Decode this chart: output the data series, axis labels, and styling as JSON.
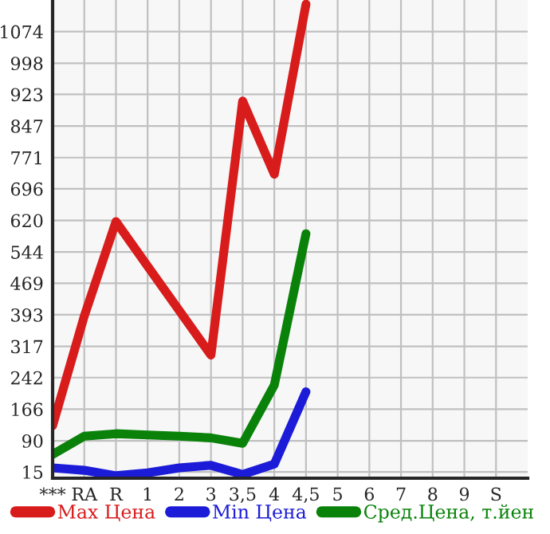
{
  "chart_data": {
    "type": "line",
    "categories": [
      "***",
      "RA",
      "R",
      "1",
      "2",
      "3",
      "3,5",
      "4",
      "4,5",
      "5",
      "6",
      "7",
      "8",
      "9",
      "S"
    ],
    "series": [
      {
        "name": "Max Цена",
        "color": "#d81c1c",
        "values": [
          126,
          390,
          617,
          510,
          403,
          296,
          907,
          731,
          1140,
          null,
          null,
          null,
          null,
          null,
          null
        ]
      },
      {
        "name": "Min Цена",
        "color": "#1c1cd8",
        "values": [
          25,
          19,
          6,
          13,
          25,
          31,
          9,
          34,
          208,
          null,
          null,
          null,
          null,
          null,
          null
        ]
      },
      {
        "name": "Сред.Цена, т.йен",
        "color": "#0a820a",
        "values": [
          57,
          101,
          107,
          104,
          101,
          97,
          84,
          224,
          588,
          null,
          null,
          null,
          null,
          null,
          null
        ]
      }
    ],
    "ylim": [
      0,
      1150
    ],
    "yticks": [
      15,
      90,
      166,
      242,
      317,
      393,
      469,
      544,
      620,
      696,
      771,
      847,
      923,
      998,
      1074
    ],
    "grid": true,
    "legend": "bottom",
    "marker": "none",
    "line_style": "solid"
  }
}
